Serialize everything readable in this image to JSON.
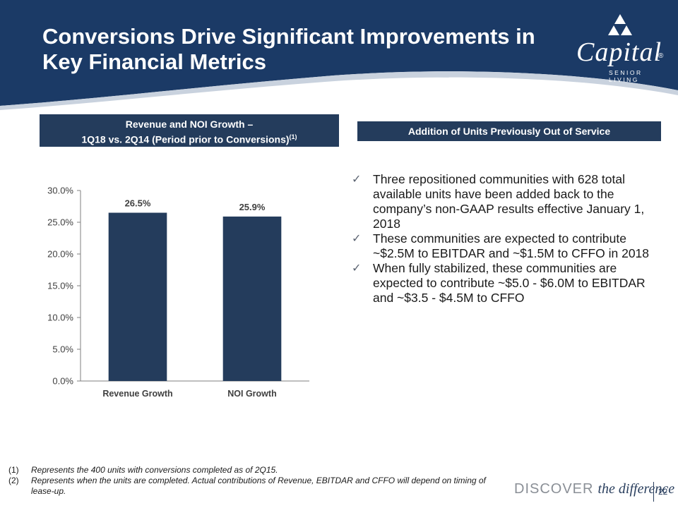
{
  "title": "Conversions Drive Significant Improvements in Key Financial Metrics",
  "logo": {
    "word": "Capital",
    "sub": "SENIOR LIVING",
    "reg": "®"
  },
  "left_header": {
    "line1": "Revenue and NOI Growth –",
    "line2": "1Q18 vs. 2Q14 (Period prior to Conversions)",
    "sup": "(1)"
  },
  "right_header": "Addition of Units Previously Out of Service",
  "bullets": [
    "Three repositioned communities with 628 total available units have been added back to the company’s non-GAAP results effective January 1, 2018",
    "These communities are expected to contribute ~$2.5M to EBITDAR and ~$1.5M to CFFO in 2018",
    "When fully stabilized, these communities are expected to contribute ~$5.0 - $6.0M to EBITDAR and ~$3.5 - $4.5M to CFFO"
  ],
  "bullet_mark": "✓",
  "footnotes": [
    {
      "num": "(1)",
      "text": "Represents the 400 units with conversions completed as of 2Q15."
    },
    {
      "num": "(2)",
      "text": "Represents when the units are completed. Actual contributions of Revenue, EBITDAR and CFFO will depend on timing of lease-up."
    }
  ],
  "footer": {
    "discover": "DISCOVER",
    "tagline": "the difference",
    "page": "22"
  },
  "colors": {
    "navy": "#1b3a66",
    "bar": "#243c5c",
    "header_box": "#243c5c"
  },
  "chart_data": {
    "type": "bar",
    "categories": [
      "Revenue Growth",
      "NOI Growth"
    ],
    "values": [
      26.5,
      25.9
    ],
    "data_labels": [
      "26.5%",
      "25.9%"
    ],
    "ylim": [
      0,
      30
    ],
    "yticks": [
      "0.0%",
      "5.0%",
      "10.0%",
      "15.0%",
      "20.0%",
      "25.0%",
      "30.0%"
    ],
    "ytick_values": [
      0,
      5,
      10,
      15,
      20,
      25,
      30
    ],
    "grid": false,
    "title": "",
    "xlabel": "",
    "ylabel": ""
  }
}
